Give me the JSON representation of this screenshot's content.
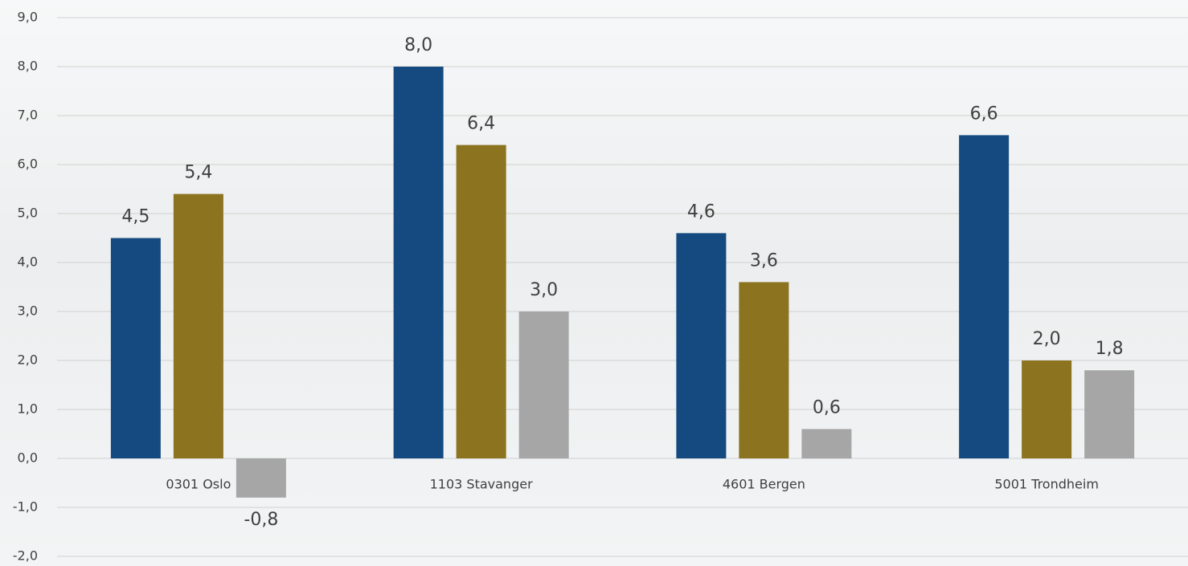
{
  "chart_data": {
    "type": "bar",
    "categories": [
      "0301 Oslo",
      "1103 Stavanger",
      "4601 Bergen",
      "5001 Trondheim"
    ],
    "series": [
      {
        "color": "#154a80",
        "values": [
          4.5,
          8.0,
          4.6,
          6.6
        ],
        "value_labels": [
          "4,5",
          "8,0",
          "4,6",
          "6,6"
        ]
      },
      {
        "color": "#8b7320",
        "values": [
          5.4,
          6.4,
          3.6,
          2.0
        ],
        "value_labels": [
          "5,4",
          "6,4",
          "3,6",
          "2,0"
        ]
      },
      {
        "color": "#a6a6a6",
        "values": [
          -0.8,
          3.0,
          0.6,
          1.8
        ],
        "value_labels": [
          "-0,8",
          "3,0",
          "0,6",
          "1,8"
        ]
      }
    ],
    "ylim": [
      -2,
      9
    ],
    "yticks": [
      {
        "value": -2,
        "label": "-2,0"
      },
      {
        "value": -1,
        "label": "-1,0"
      },
      {
        "value": 0,
        "label": "0,0"
      },
      {
        "value": 1,
        "label": "1,0"
      },
      {
        "value": 2,
        "label": "2,0"
      },
      {
        "value": 3,
        "label": "3,0"
      },
      {
        "value": 4,
        "label": "4,0"
      },
      {
        "value": 5,
        "label": "5,0"
      },
      {
        "value": 6,
        "label": "6,0"
      },
      {
        "value": 7,
        "label": "7,0"
      },
      {
        "value": 8,
        "label": "8,0"
      },
      {
        "value": 9,
        "label": "9,0"
      }
    ],
    "grid": true
  }
}
